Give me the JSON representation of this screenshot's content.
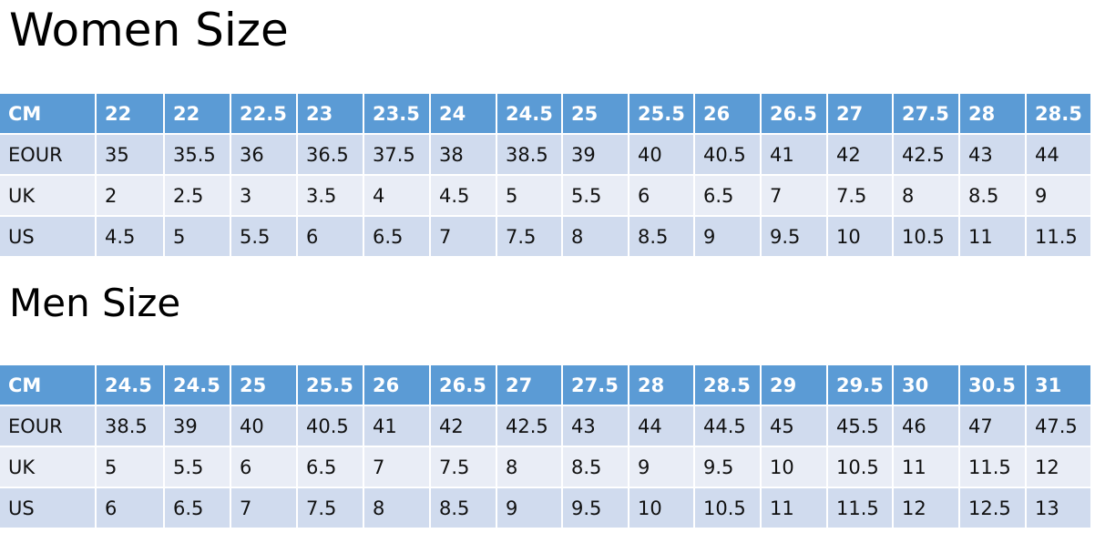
{
  "women": {
    "title": "Women Size",
    "rows": [
      [
        "CM",
        "22",
        "22",
        "22.5",
        "23",
        "23.5",
        "24",
        "24.5",
        "25",
        "25.5",
        "26",
        "26.5",
        "27",
        "27.5",
        "28",
        "28.5"
      ],
      [
        "EOUR",
        "35",
        "35.5",
        "36",
        "36.5",
        "37.5",
        "38",
        "38.5",
        "39",
        "40",
        "40.5",
        "41",
        "42",
        "42.5",
        "43",
        "44"
      ],
      [
        "UK",
        "2",
        "2.5",
        "3",
        "3.5",
        "4",
        "4.5",
        "5",
        "5.5",
        "6",
        "6.5",
        "7",
        "7.5",
        "8",
        "8.5",
        "9"
      ],
      [
        "US",
        "4.5",
        "5",
        "5.5",
        "6",
        "6.5",
        "7",
        "7.5",
        "8",
        "8.5",
        "9",
        "9.5",
        "10",
        "10.5",
        "11",
        "11.5"
      ]
    ]
  },
  "men": {
    "title": "Men Size",
    "rows": [
      [
        "CM",
        "24.5",
        "24.5",
        "25",
        "25.5",
        "26",
        "26.5",
        "27",
        "27.5",
        "28",
        "28.5",
        "29",
        "29.5",
        "30",
        "30.5",
        "31"
      ],
      [
        "EOUR",
        "38.5",
        "39",
        "40",
        "40.5",
        "41",
        "42",
        "42.5",
        "43",
        "44",
        "44.5",
        "45",
        "45.5",
        "46",
        "47",
        "47.5"
      ],
      [
        "UK",
        "5",
        "5.5",
        "6",
        "6.5",
        "7",
        "7.5",
        "8",
        "8.5",
        "9",
        "9.5",
        "10",
        "10.5",
        "11",
        "11.5",
        "12"
      ],
      [
        "US",
        "6",
        "6.5",
        "7",
        "7.5",
        "8",
        "8.5",
        "9",
        "9.5",
        "10",
        "10.5",
        "11",
        "11.5",
        "12",
        "12.5",
        "13"
      ]
    ]
  },
  "colors": {
    "header": "#5b9bd5",
    "row_dark": "#d0dbee",
    "row_light": "#e9edf6"
  }
}
